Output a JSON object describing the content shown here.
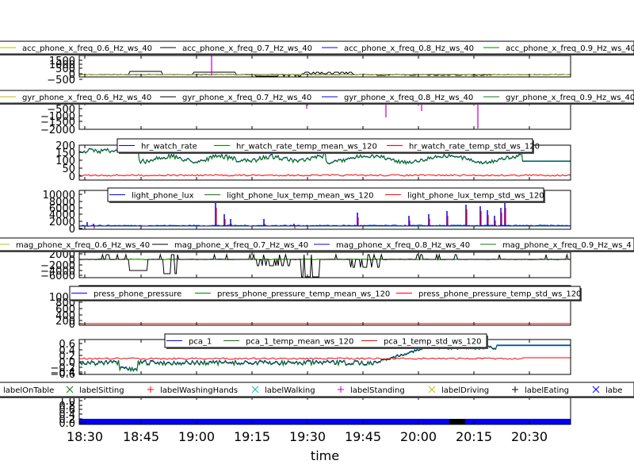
{
  "figure": {
    "xlabel": "time"
  },
  "xticks": [
    "18:30",
    "18:45",
    "19:00",
    "19:15",
    "19:30",
    "19:45",
    "20:00",
    "20:15",
    "20:30"
  ],
  "chart_data": [
    {
      "type": "line",
      "panel": "acc",
      "series": [
        {
          "name": "acc_phone_x_freq_0.6_Hz_ws_40",
          "color": "#bfbf00"
        },
        {
          "name": "acc_phone_x_freq_0.7_Hz_ws_40",
          "color": "#000000"
        },
        {
          "name": "acc_phone_x_freq_0.8_Hz_ws_40",
          "color": "#0000ff"
        },
        {
          "name": "acc_phone_x_freq_0.9_Hz_ws_40",
          "color": "#008000"
        }
      ],
      "yticks": [
        "1500",
        "1000",
        "500",
        "0",
        "−500"
      ],
      "ylim": [
        -700,
        1700
      ]
    },
    {
      "type": "line",
      "panel": "gyr",
      "series": [
        {
          "name": "gyr_phone_x_freq_0.6_Hz_ws_40",
          "color": "#bfbf00"
        },
        {
          "name": "gyr_phone_x_freq_0.7_Hz_ws_40",
          "color": "#000000"
        },
        {
          "name": "gyr_phone_x_freq_0.8_Hz_ws_40",
          "color": "#0000ff"
        },
        {
          "name": "gyr_phone_x_freq_0.9_Hz_ws_40",
          "color": "#008000"
        }
      ],
      "yticks": [
        "−500",
        "−1000",
        "−1500",
        "−2000"
      ],
      "ylim": [
        -2150,
        -250
      ]
    },
    {
      "type": "line",
      "panel": "hr",
      "series": [
        {
          "name": "hr_watch_rate",
          "color": "#0000ff"
        },
        {
          "name": "hr_watch_rate_temp_mean_ws_120",
          "color": "#008000"
        },
        {
          "name": "hr_watch_rate_temp_std_ws_120",
          "color": "#ff0000"
        }
      ],
      "yticks": [
        "200",
        "150",
        "100",
        "50",
        "0"
      ],
      "ylim": [
        -15,
        200
      ]
    },
    {
      "type": "line",
      "panel": "light",
      "series": [
        {
          "name": "light_phone_lux",
          "color": "#0000ff"
        },
        {
          "name": "light_phone_lux_temp_mean_ws_120",
          "color": "#008000"
        },
        {
          "name": "light_phone_lux_temp_std_ws_120",
          "color": "#ff0000"
        }
      ],
      "yticks": [
        "10000",
        "8000",
        "6000",
        "4000",
        "2000",
        "0"
      ],
      "ylim": [
        -500,
        10000
      ]
    },
    {
      "type": "line",
      "panel": "mag",
      "series": [
        {
          "name": "mag_phone_x_freq_0.6_Hz_ws_40",
          "color": "#bfbf00"
        },
        {
          "name": "mag_phone_x_freq_0.7_Hz_ws_40",
          "color": "#000000"
        },
        {
          "name": "mag_phone_x_freq_0.8_Hz_ws_40",
          "color": "#0000ff"
        },
        {
          "name": "mag_phone_x_freq_0.9_Hz_ws_4",
          "color": "#008000"
        }
      ],
      "yticks": [
        "2000",
        "0",
        "−2000",
        "−4000",
        "−6000"
      ],
      "ylim": [
        -6500,
        2200
      ]
    },
    {
      "type": "line",
      "panel": "press",
      "series": [
        {
          "name": "press_phone_pressure",
          "color": "#0000ff"
        },
        {
          "name": "press_phone_pressure_temp_mean_ws_120",
          "color": "#008000"
        },
        {
          "name": "press_phone_pressure_temp_std_ws_120",
          "color": "#ff0000"
        }
      ],
      "yticks": [
        "1000",
        "800",
        "600",
        "400",
        "200",
        "0"
      ],
      "ylim": [
        -50,
        1050
      ]
    },
    {
      "type": "line",
      "panel": "pca",
      "series": [
        {
          "name": "pca_1",
          "color": "#0000ff"
        },
        {
          "name": "pca_1_temp_mean_ws_120",
          "color": "#008000"
        },
        {
          "name": "pca_1_temp_std_ws_120",
          "color": "#ff0000"
        }
      ],
      "yticks": [
        "0.6",
        "0.4",
        "0.2",
        "0.0",
        "−0.2",
        "−0.4",
        "−0.6"
      ],
      "ylim": [
        -0.7,
        0.65
      ]
    },
    {
      "type": "scatter",
      "panel": "labels",
      "series": [
        {
          "name": "labelOnTable",
          "color": "#000000",
          "marker": "x"
        },
        {
          "name": "labelSitting",
          "color": "#008000",
          "marker": "x"
        },
        {
          "name": "labelWashingHands",
          "color": "#ff0000",
          "marker": "+"
        },
        {
          "name": "labelWalking",
          "color": "#00bfbf",
          "marker": "x"
        },
        {
          "name": "labelStanding",
          "color": "#bf00bf",
          "marker": "+"
        },
        {
          "name": "labelDriving",
          "color": "#bfbf00",
          "marker": "x"
        },
        {
          "name": "labelEating",
          "color": "#000000",
          "marker": "+"
        },
        {
          "name": "labe",
          "color": "#0000ff",
          "marker": "x"
        }
      ],
      "yticks": [
        "1.0",
        "0.8",
        "0.6",
        "0.4",
        "0.2",
        "0.0"
      ],
      "ylim": [
        -0.05,
        1.05
      ]
    }
  ]
}
